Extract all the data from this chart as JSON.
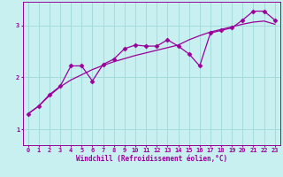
{
  "xlabel": "Windchill (Refroidissement éolien,°C)",
  "ylabel": "",
  "bg_color": "#c8f0f0",
  "line_color": "#990099",
  "xlim": [
    -0.5,
    23.5
  ],
  "ylim": [
    0.7,
    3.45
  ],
  "xticks": [
    0,
    1,
    2,
    3,
    4,
    5,
    6,
    7,
    8,
    9,
    10,
    11,
    12,
    13,
    14,
    15,
    16,
    17,
    18,
    19,
    20,
    21,
    22,
    23
  ],
  "yticks": [
    1,
    2,
    3
  ],
  "smooth_x": [
    0,
    1,
    2,
    3,
    4,
    5,
    6,
    7,
    8,
    9,
    10,
    11,
    12,
    13,
    14,
    15,
    16,
    17,
    18,
    19,
    20,
    21,
    22,
    23
  ],
  "smooth_y": [
    1.3,
    1.45,
    1.65,
    1.82,
    1.95,
    2.05,
    2.15,
    2.23,
    2.3,
    2.36,
    2.42,
    2.47,
    2.52,
    2.57,
    2.62,
    2.72,
    2.8,
    2.87,
    2.92,
    2.97,
    3.02,
    3.06,
    3.08,
    3.02
  ],
  "jagged_x": [
    0,
    1,
    2,
    3,
    4,
    5,
    6,
    7,
    8,
    9,
    10,
    11,
    12,
    13,
    14,
    15,
    16,
    17,
    18,
    19,
    20,
    21,
    22,
    23
  ],
  "jagged_y": [
    1.3,
    1.45,
    1.67,
    1.83,
    2.22,
    2.22,
    1.93,
    2.25,
    2.35,
    2.55,
    2.62,
    2.6,
    2.6,
    2.72,
    2.6,
    2.45,
    2.22,
    2.85,
    2.9,
    2.95,
    3.1,
    3.27,
    3.27,
    3.1
  ],
  "grid_color": "#a0d8d8",
  "markersize": 2.5
}
